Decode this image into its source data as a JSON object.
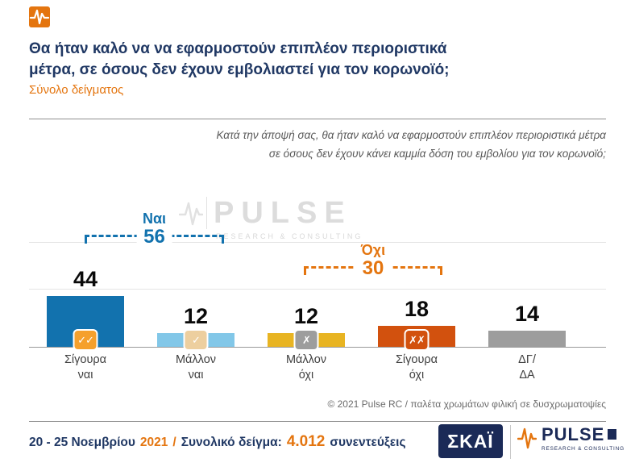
{
  "header": {
    "title_line1": "Θα ήταν καλό να να εφαρμοστούν επιπλέον περιοριστικά",
    "title_line2": "μέτρα, σε όσους δεν έχουν εμβολιαστεί για τον κορωνοϊό;",
    "subtitle": "Σύνολο δείγματος"
  },
  "question": {
    "line1": "Κατά την άποψή σας, θα ήταν καλό να εφαρμοστούν επιπλέον περιοριστικά μέτρα",
    "line2": "σε όσους δεν έχουν κάνει καμμία δόση του εμβολίου για τον κορωνοϊό;"
  },
  "watermark": {
    "name": "PULSE",
    "sub": "RESEARCH & CONSULTING"
  },
  "chart_data": {
    "type": "bar",
    "title": "Θα ήταν καλό να εφαρμοστούν επιπλέον περιοριστικά μέτρα, σε όσους δεν έχουν εμβολιαστεί για τον κορωνοϊό;",
    "categories": [
      "Σίγουρα ναι",
      "Μάλλον ναι",
      "Μάλλον όχι",
      "Σίγουρα όχι",
      "ΔΓ/ΔΑ"
    ],
    "category_lines": [
      [
        "Σίγουρα",
        "ναι"
      ],
      [
        "Μάλλον",
        "ναι"
      ],
      [
        "Μάλλον",
        "όχι"
      ],
      [
        "Σίγουρα",
        "όχι"
      ],
      [
        "ΔΓ/",
        "ΔΑ"
      ]
    ],
    "values": [
      44,
      12,
      12,
      18,
      14
    ],
    "bar_colors": [
      "#1272ae",
      "#82c7e8",
      "#e8b422",
      "#d2510e",
      "#9d9d9d"
    ],
    "badges": [
      {
        "symbol": "✓✓",
        "color": "#f5a02c",
        "icon_name": "double-check-icon"
      },
      {
        "symbol": "✓",
        "color": "#edcf9f",
        "icon_name": "check-icon"
      },
      {
        "symbol": "✗",
        "color": "#9d9d9d",
        "icon_name": "cross-icon"
      },
      {
        "symbol": "✗✗",
        "color": "#d2510e",
        "icon_name": "double-cross-icon"
      },
      null
    ],
    "groups": [
      {
        "label": "Ναι",
        "value": "56",
        "color": "#1272ae"
      },
      {
        "label": "Όχι",
        "value": "30",
        "color": "#e4750f"
      }
    ],
    "ylim": [
      0,
      50
    ],
    "grid": true,
    "legend": "none"
  },
  "copyright": "© 2021 Pulse RC   /   παλέτα χρωμάτων φιλική σε δυσχρωματοψίες",
  "footer": {
    "dates": "20 - 25  Νοεμβρίου",
    "year": "2021",
    "slash": "/",
    "sample_label": "Συνολικό δείγμα:",
    "sample_value": "4.012",
    "sample_unit": "συνεντεύξεις"
  },
  "logos": {
    "skai": "ΣΚΑΪ",
    "pulse": "PULSE",
    "pulse_sub": "RESEARCH & CONSULTING"
  },
  "colors": {
    "navy": "#203864",
    "orange": "#e4750f"
  }
}
